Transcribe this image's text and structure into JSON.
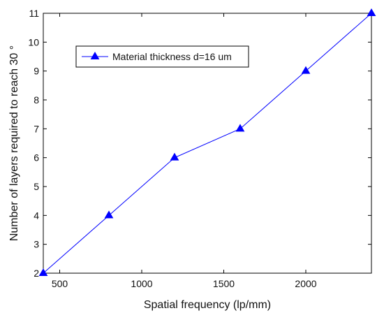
{
  "chart_data": {
    "type": "line",
    "title": "",
    "xlabel": "Spatial frequency (lp/mm)",
    "ylabel": "Number of layers required to reach 30 °",
    "xlim": [
      400,
      2400
    ],
    "ylim": [
      2,
      11
    ],
    "x_ticks": [
      "500",
      "1000",
      "1500",
      "2000"
    ],
    "y_ticks": [
      "2",
      "3",
      "4",
      "5",
      "6",
      "7",
      "8",
      "9",
      "10",
      "11"
    ],
    "grid": false,
    "legend_position": "upper-left",
    "series": [
      {
        "name": "Material thickness d=16 um",
        "color": "#0000ff",
        "marker": "triangle",
        "x": [
          400,
          800,
          1200,
          1600,
          2000,
          2400
        ],
        "y": [
          2,
          4,
          6,
          7,
          9,
          11
        ]
      }
    ]
  }
}
